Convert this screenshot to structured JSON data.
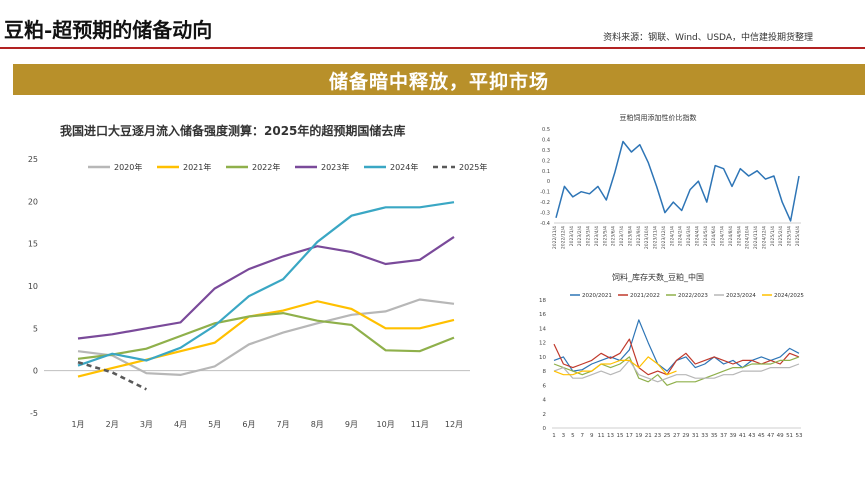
{
  "header": {
    "title": "豆粕-超预期的储备动向",
    "source": "资料来源：钢联、Wind、USDA，中信建投期货整理"
  },
  "banner": {
    "text": "储备暗中释放，平抑市场"
  },
  "chart_data": [
    {
      "type": "line",
      "title": "我国进口大豆逐月流入储备强度测算：2025年的超预期国储去库",
      "categories": [
        "1月",
        "2月",
        "3月",
        "4月",
        "5月",
        "6月",
        "7月",
        "8月",
        "9月",
        "10月",
        "11月",
        "12月"
      ],
      "ylim": [
        -5,
        25
      ],
      "yticks": [
        -5,
        0,
        5,
        10,
        15,
        20,
        25
      ],
      "legend_position": "top",
      "series": [
        {
          "name": "2020年",
          "color": "#b7b7b7",
          "dash": false,
          "values": [
            2.3,
            1.8,
            -0.3,
            -0.5,
            0.5,
            3.1,
            4.5,
            5.6,
            6.6,
            7.0,
            8.4,
            7.9
          ]
        },
        {
          "name": "2021年",
          "color": "#ffc000",
          "dash": false,
          "values": [
            -0.7,
            0.3,
            1.3,
            2.3,
            3.3,
            6.4,
            7.1,
            8.2,
            7.3,
            5.0,
            5.0,
            6.0
          ]
        },
        {
          "name": "2022年",
          "color": "#8fb04b",
          "dash": false,
          "values": [
            1.4,
            1.9,
            2.6,
            4.1,
            5.6,
            6.4,
            6.8,
            5.9,
            5.4,
            2.4,
            2.3,
            3.9
          ]
        },
        {
          "name": "2023年",
          "color": "#7a4a9a",
          "dash": false,
          "values": [
            3.8,
            4.3,
            5.0,
            5.7,
            9.7,
            12.0,
            13.5,
            14.7,
            14.0,
            12.6,
            13.1,
            15.8
          ]
        },
        {
          "name": "2024年",
          "color": "#3aa7c4",
          "dash": false,
          "values": [
            0.6,
            2.0,
            1.2,
            2.7,
            5.3,
            8.8,
            10.8,
            15.2,
            18.3,
            19.3,
            19.3,
            19.9
          ]
        },
        {
          "name": "2025年",
          "color": "#595959",
          "dash": true,
          "values": [
            1.0,
            -0.2,
            -2.2,
            null,
            null,
            null,
            null,
            null,
            null,
            null,
            null,
            null
          ]
        }
      ]
    },
    {
      "type": "line",
      "title": "豆粕饲用添加性价比指数",
      "ylim": [
        -0.4,
        0.5
      ],
      "yticks": [
        -0.4,
        -0.3,
        -0.2,
        -0.1,
        0,
        0.1,
        0.2,
        0.3,
        0.4,
        0.5
      ],
      "x_labels": [
        "2022/11/4",
        "2022/12/4",
        "2023/1/4",
        "2023/2/4",
        "2023/3/4",
        "2023/4/4",
        "2023/5/4",
        "2023/6/4",
        "2023/7/4",
        "2023/8/4",
        "2023/9/4",
        "2023/10/4",
        "2023/11/4",
        "2023/12/4",
        "2024/1/4",
        "2024/2/4",
        "2024/3/4",
        "2024/4/4",
        "2024/5/4",
        "2024/6/4",
        "2024/7/4",
        "2024/8/4",
        "2024/9/4",
        "2024/10/4",
        "2024/11/4",
        "2024/12/4",
        "2025/1/4",
        "2025/2/4",
        "2025/3/4",
        "2025/4/4"
      ],
      "series": [
        {
          "name": "",
          "color": "#2e75b6",
          "values": [
            -0.35,
            -0.05,
            -0.15,
            -0.1,
            -0.12,
            -0.05,
            -0.18,
            0.08,
            0.38,
            0.28,
            0.35,
            0.18,
            -0.05,
            -0.3,
            -0.2,
            -0.28,
            -0.08,
            0.0,
            -0.2,
            0.15,
            0.12,
            -0.05,
            0.12,
            0.05,
            0.1,
            0.02,
            0.05,
            -0.2,
            -0.38,
            0.05
          ]
        }
      ]
    },
    {
      "type": "line",
      "title": "饲料_库存天数_豆粕_中国",
      "ylim": [
        0,
        18
      ],
      "yticks": [
        0,
        2,
        4,
        6,
        8,
        10,
        12,
        14,
        16,
        18
      ],
      "x": [
        1,
        3,
        5,
        7,
        9,
        11,
        13,
        15,
        17,
        19,
        21,
        23,
        25,
        27,
        29,
        31,
        33,
        35,
        37,
        39,
        41,
        43,
        45,
        47,
        49,
        51,
        53
      ],
      "legend_position": "top",
      "series": [
        {
          "name": "2020/2021",
          "color": "#2e75b6",
          "values": [
            9.5,
            10,
            8,
            8.2,
            9,
            9.5,
            10,
            9.5,
            11,
            15.2,
            12,
            9,
            8,
            9.5,
            10,
            8.5,
            9,
            10,
            9,
            9.5,
            8.5,
            9.5,
            10,
            9.5,
            10,
            11.2,
            10.5
          ]
        },
        {
          "name": "2021/2022",
          "color": "#c0392b",
          "values": [
            11.8,
            9,
            8.5,
            9,
            9.5,
            10.5,
            9.8,
            10.5,
            12.5,
            8.5,
            7.5,
            8,
            7.5,
            9.5,
            10.5,
            9,
            9.5,
            10,
            9.5,
            9,
            9.5,
            9.5,
            9,
            9.5,
            9,
            10.5,
            10
          ]
        },
        {
          "name": "2022/2023",
          "color": "#8fb04b",
          "values": [
            9,
            8.5,
            8,
            7.5,
            8,
            9,
            8.5,
            9,
            10,
            7,
            6.5,
            7.5,
            6,
            6.5,
            6.5,
            6.5,
            7,
            7.5,
            8,
            8.5,
            8.5,
            9,
            9,
            9,
            9.5,
            9.5,
            10
          ]
        },
        {
          "name": "2023/2024",
          "color": "#b7b7b7",
          "values": [
            8,
            8.5,
            7,
            7,
            7.5,
            8,
            7.5,
            8,
            9.5,
            7.5,
            7,
            6.5,
            7,
            7.5,
            7.5,
            7,
            7,
            7,
            7.5,
            7.5,
            8,
            8,
            8,
            8.5,
            8.5,
            8.5,
            9
          ]
        },
        {
          "name": "2024/2025",
          "color": "#ffc000",
          "values": [
            8,
            7.5,
            7.5,
            8,
            8,
            9,
            9,
            9.5,
            9.5,
            8.5,
            10,
            9,
            7.5,
            8,
            null,
            null,
            null,
            null,
            null,
            null,
            null,
            null,
            null,
            null,
            null,
            null,
            null
          ]
        }
      ]
    }
  ]
}
